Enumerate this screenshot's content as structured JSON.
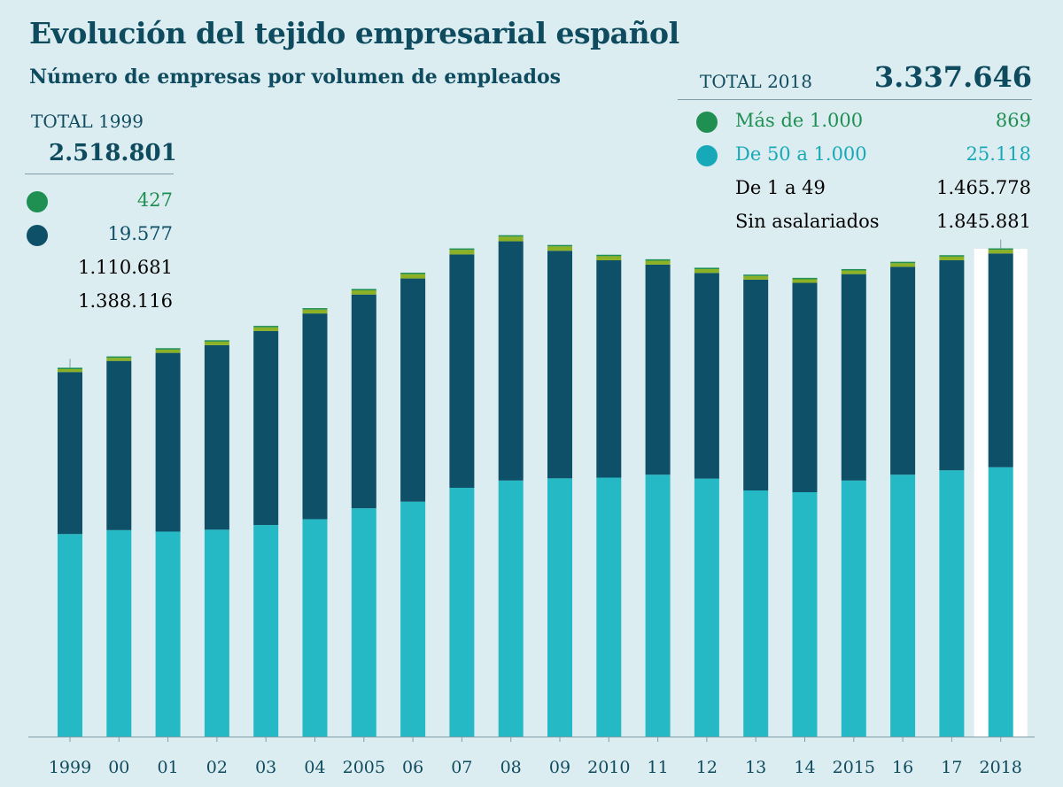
{
  "title": "Evolución del tejido empresarial español",
  "subtitle": "Número de empresas por volumen de empleados",
  "total_1999": {
    "label": "TOTAL 1999",
    "value": "2.518.801",
    "items": [
      {
        "name": "Más de 1.000",
        "value": "427",
        "color": "#1f8f52"
      },
      {
        "name": "De 50 a 1.000",
        "value": "19.577",
        "color": "#8cb124"
      },
      {
        "name": "De 1 a 49",
        "value": "1.110.681",
        "color": "#0d5068"
      },
      {
        "name": "Sin asalariados",
        "value": "1.388.116",
        "color": "#17a9b8"
      }
    ]
  },
  "total_2018": {
    "label": "TOTAL 2018",
    "value": "3.337.646",
    "items": [
      {
        "name": "Más de 1.000",
        "value": "869",
        "color": "#1f8f52"
      },
      {
        "name": "De 50 a 1.000",
        "value": "25.118",
        "color": "#8cb124"
      },
      {
        "name": "De 1 a 49",
        "value": "1.465.778",
        "color": "#0d5068"
      },
      {
        "name": "Sin asalariados",
        "value": "1.845.881",
        "color": "#17a9b8"
      }
    ]
  },
  "chart_data": {
    "type": "bar",
    "stacked": true,
    "title": "Evolución del tejido empresarial español",
    "subtitle": "Número de empresas por volumen de empleados",
    "categories": [
      "1999",
      "00",
      "01",
      "02",
      "03",
      "04",
      "2005",
      "06",
      "07",
      "08",
      "09",
      "2010",
      "11",
      "12",
      "13",
      "14",
      "2015",
      "16",
      "17",
      "2018"
    ],
    "ylim": [
      0,
      3400000
    ],
    "highlight_category": "2018",
    "series": [
      {
        "name": "Sin asalariados",
        "color": "#25b9c6",
        "values": [
          1388116,
          1415000,
          1405000,
          1418000,
          1450000,
          1490000,
          1565000,
          1610000,
          1705000,
          1755000,
          1770000,
          1775000,
          1795000,
          1768000,
          1687000,
          1675000,
          1755000,
          1795000,
          1825000,
          1845881
        ]
      },
      {
        "name": "De 1 a 49",
        "color": "#0d5068",
        "values": [
          1110681,
          1160000,
          1225000,
          1265000,
          1330000,
          1410000,
          1465000,
          1530000,
          1600000,
          1640000,
          1560000,
          1490000,
          1440000,
          1410000,
          1445000,
          1435000,
          1415000,
          1425000,
          1440000,
          1465778
        ]
      },
      {
        "name": "De 50 a 1.000",
        "color": "#8cb124",
        "values": [
          19577,
          21000,
          22500,
          24000,
          25500,
          27000,
          28500,
          30000,
          31500,
          32000,
          30000,
          28000,
          27000,
          26000,
          25000,
          24500,
          24800,
          25000,
          25100,
          25118
        ]
      },
      {
        "name": "Más de 1.000",
        "color": "#1f8f52",
        "values": [
          427,
          480,
          520,
          570,
          620,
          670,
          720,
          780,
          830,
          860,
          840,
          820,
          800,
          790,
          780,
          790,
          810,
          830,
          850,
          869
        ]
      }
    ]
  }
}
